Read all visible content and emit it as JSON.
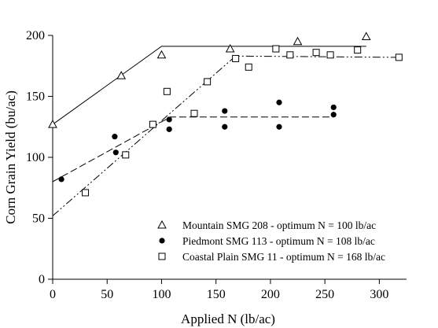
{
  "chart_data": {
    "type": "scatter",
    "xlabel": "Applied N (lb/ac)",
    "ylabel": "Corn Grain Yield (bu/ac)",
    "xlim": [
      0,
      325
    ],
    "ylim": [
      0,
      200
    ],
    "xticks": [
      0,
      50,
      100,
      150,
      200,
      250,
      300
    ],
    "yticks": [
      0,
      50,
      100,
      150,
      200
    ],
    "grid": false,
    "legend_position": "bottom-right",
    "series": [
      {
        "name": "Mountain SMG 208 - optimum N = 100 lb/ac",
        "marker": "open-triangle",
        "line_style": "solid",
        "points": [
          [
            0,
            127
          ],
          [
            63,
            167
          ],
          [
            100,
            184
          ],
          [
            163,
            189
          ],
          [
            225,
            195
          ],
          [
            288,
            199
          ]
        ],
        "fit": [
          [
            0,
            127
          ],
          [
            100,
            191
          ],
          [
            288,
            191
          ]
        ]
      },
      {
        "name": "Piedmont SMG 113 - optimum N = 108 lb/ac",
        "marker": "filled-circle",
        "line_style": "dashed",
        "points": [
          [
            8,
            82
          ],
          [
            57,
            117
          ],
          [
            58,
            104
          ],
          [
            107,
            131
          ],
          [
            107,
            123
          ],
          [
            158,
            138
          ],
          [
            158,
            125
          ],
          [
            208,
            145
          ],
          [
            208,
            125
          ],
          [
            258,
            141
          ],
          [
            258,
            135
          ]
        ],
        "fit": [
          [
            0,
            80
          ],
          [
            108,
            133
          ],
          [
            258,
            133
          ]
        ]
      },
      {
        "name": "Coastal Plain SMG 11 - optimum N = 168 lb/ac",
        "marker": "open-square",
        "line_style": "dash-dot-dot",
        "points": [
          [
            30,
            71
          ],
          [
            67,
            102
          ],
          [
            92,
            127
          ],
          [
            105,
            154
          ],
          [
            130,
            136
          ],
          [
            142,
            162
          ],
          [
            168,
            181
          ],
          [
            180,
            174
          ],
          [
            205,
            189
          ],
          [
            218,
            184
          ],
          [
            242,
            186
          ],
          [
            255,
            184
          ],
          [
            280,
            188
          ],
          [
            318,
            182
          ]
        ],
        "fit": [
          [
            0,
            52
          ],
          [
            168,
            183
          ],
          [
            318,
            182
          ]
        ]
      }
    ]
  }
}
